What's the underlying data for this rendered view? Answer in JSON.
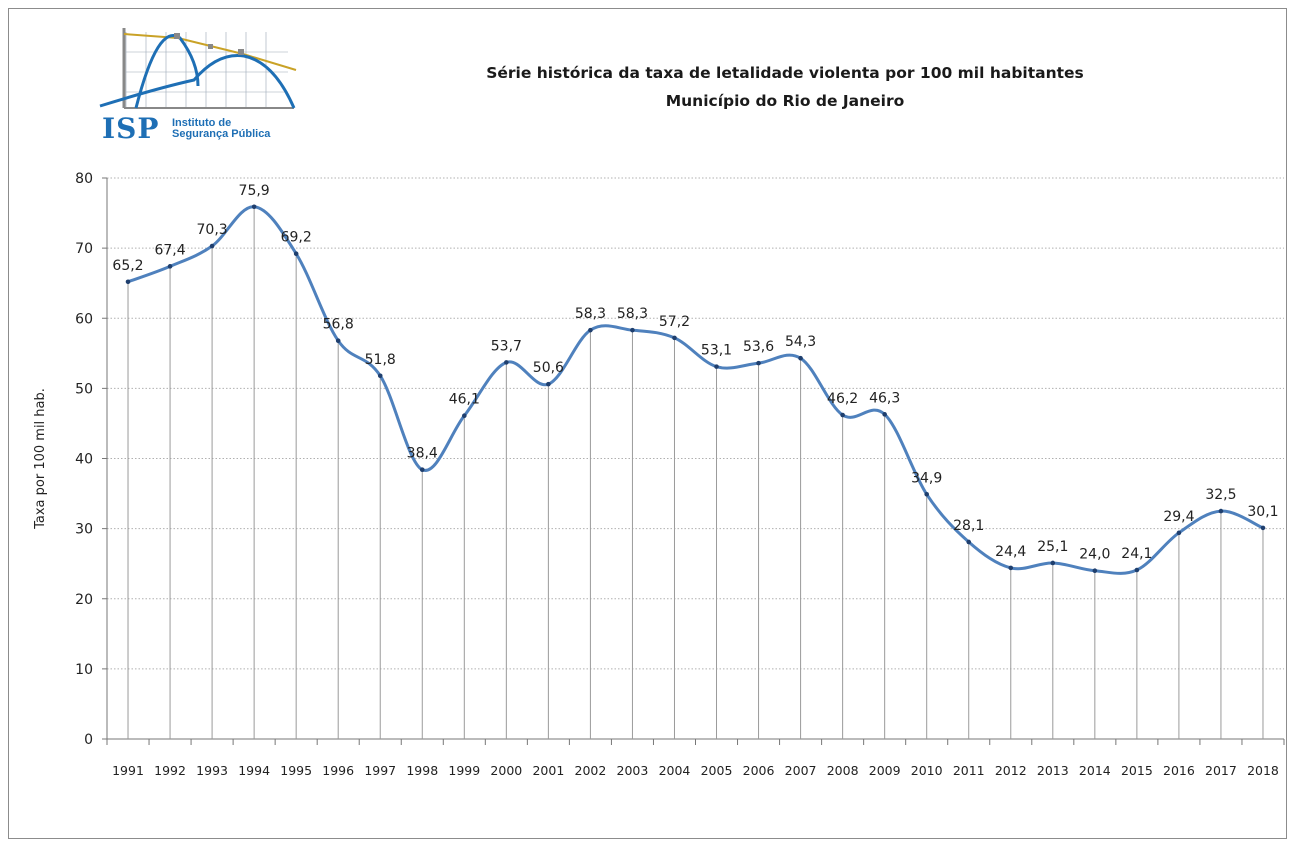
{
  "logo": {
    "abbreviation": "ISP",
    "name": "Instituto de\nSegurança Pública"
  },
  "chart_data": {
    "type": "line",
    "title": "Série histórica da taxa de letalidade violenta por 100 mil habitantes",
    "subtitle": "Município do Rio de Janeiro",
    "ylabel": "Taxa por 100 mil hab.",
    "xlabel": "",
    "ylim": [
      0,
      80
    ],
    "yticks": [
      0,
      10,
      20,
      30,
      40,
      50,
      60,
      70,
      80
    ],
    "grid": true,
    "categories": [
      "1991",
      "1992",
      "1993",
      "1994",
      "1995",
      "1996",
      "1997",
      "1998",
      "1999",
      "2000",
      "2001",
      "2002",
      "2003",
      "2004",
      "2005",
      "2006",
      "2007",
      "2008",
      "2009",
      "2010",
      "2011",
      "2012",
      "2013",
      "2014",
      "2015",
      "2016",
      "2017",
      "2018"
    ],
    "values": [
      65.2,
      67.4,
      70.3,
      75.9,
      69.2,
      56.8,
      51.8,
      38.4,
      46.1,
      53.7,
      50.6,
      58.3,
      58.3,
      57.2,
      53.1,
      53.6,
      54.3,
      46.2,
      46.3,
      34.9,
      28.1,
      24.4,
      25.1,
      24.0,
      24.1,
      29.4,
      32.5,
      30.1
    ],
    "labels": [
      "65,2",
      "67,4",
      "70,3",
      "75,9",
      "69,2",
      "56,8",
      "51,8",
      "38,4",
      "46,1",
      "53,7",
      "50,6",
      "58,3",
      "58,3",
      "57,2",
      "53,1",
      "53,6",
      "54,3",
      "46,2",
      "46,3",
      "34,9",
      "28,1",
      "24,4",
      "25,1",
      "24,0",
      "24,1",
      "29,4",
      "32,5",
      "30,1"
    ],
    "line_color": "#4f81bd",
    "marker_color": "#1f3f6e",
    "gridline_color": "#b0b0b0",
    "dropline_color": "#9a9a9a"
  }
}
